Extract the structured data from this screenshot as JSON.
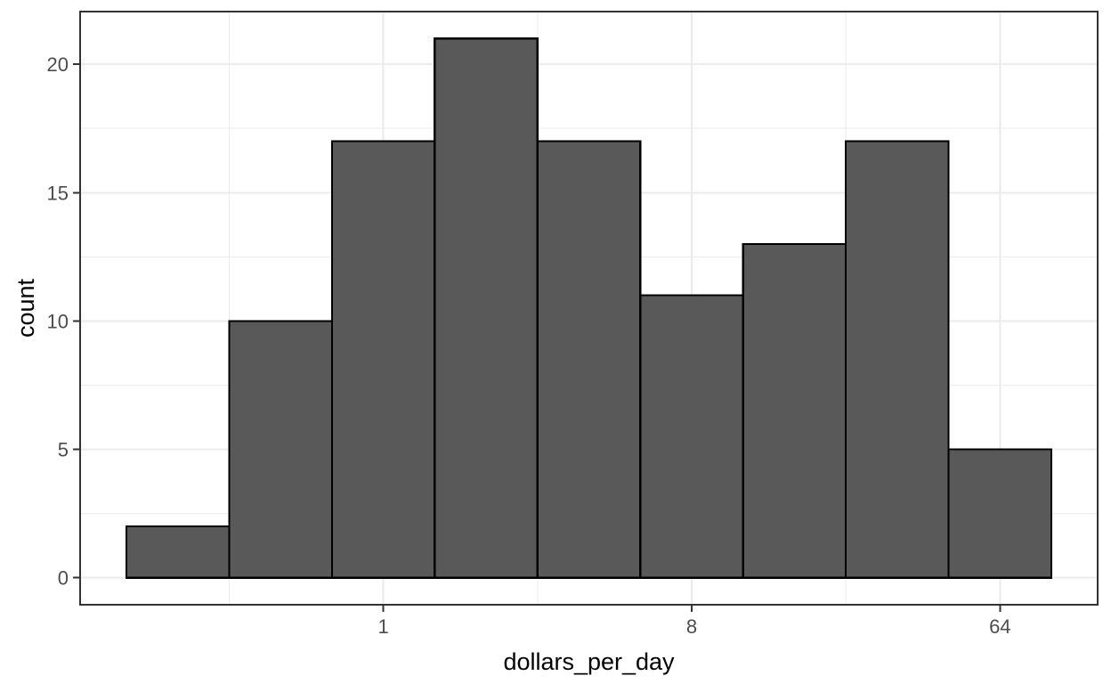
{
  "chart_data": {
    "type": "bar",
    "subtype": "histogram",
    "title": "",
    "xlabel": "dollars_per_day",
    "ylabel": "count",
    "x_scale": "log2",
    "bins": {
      "log2_centers": [
        -2,
        -1,
        0,
        1,
        2,
        3,
        4,
        5,
        6
      ],
      "centers": [
        0.25,
        0.5,
        1,
        2,
        4,
        8,
        16,
        32,
        64
      ],
      "binwidth_log2": 1,
      "counts": [
        2,
        10,
        17,
        21,
        17,
        11,
        13,
        17,
        5
      ]
    },
    "x_ticks": [
      {
        "label": "1",
        "log2": 0
      },
      {
        "label": "8",
        "log2": 3
      },
      {
        "label": "64",
        "log2": 6
      }
    ],
    "x_minor_log2": [
      -1.5,
      1.5,
      4.5
    ],
    "y_ticks": [
      {
        "label": "0",
        "value": 0
      },
      {
        "label": "5",
        "value": 5
      },
      {
        "label": "10",
        "value": 10
      },
      {
        "label": "15",
        "value": 15
      },
      {
        "label": "20",
        "value": 20
      }
    ],
    "y_minor": [
      2.5,
      7.5,
      12.5,
      17.5
    ],
    "x_domain_log2": [
      -2.95,
      6.95
    ],
    "y_domain": [
      -1.05,
      22.05
    ],
    "grid": true,
    "legend_position": "none",
    "colors": {
      "background": "#FFFFFF",
      "panel_background": "#FFFFFF",
      "panel_border": "#333333",
      "grid": "#EBEBEB",
      "tick_mark": "#333333",
      "tick_label": "#4D4D4D",
      "axis_title": "#000000",
      "bar_fill": "#595959",
      "bar_stroke": "#000000"
    }
  }
}
